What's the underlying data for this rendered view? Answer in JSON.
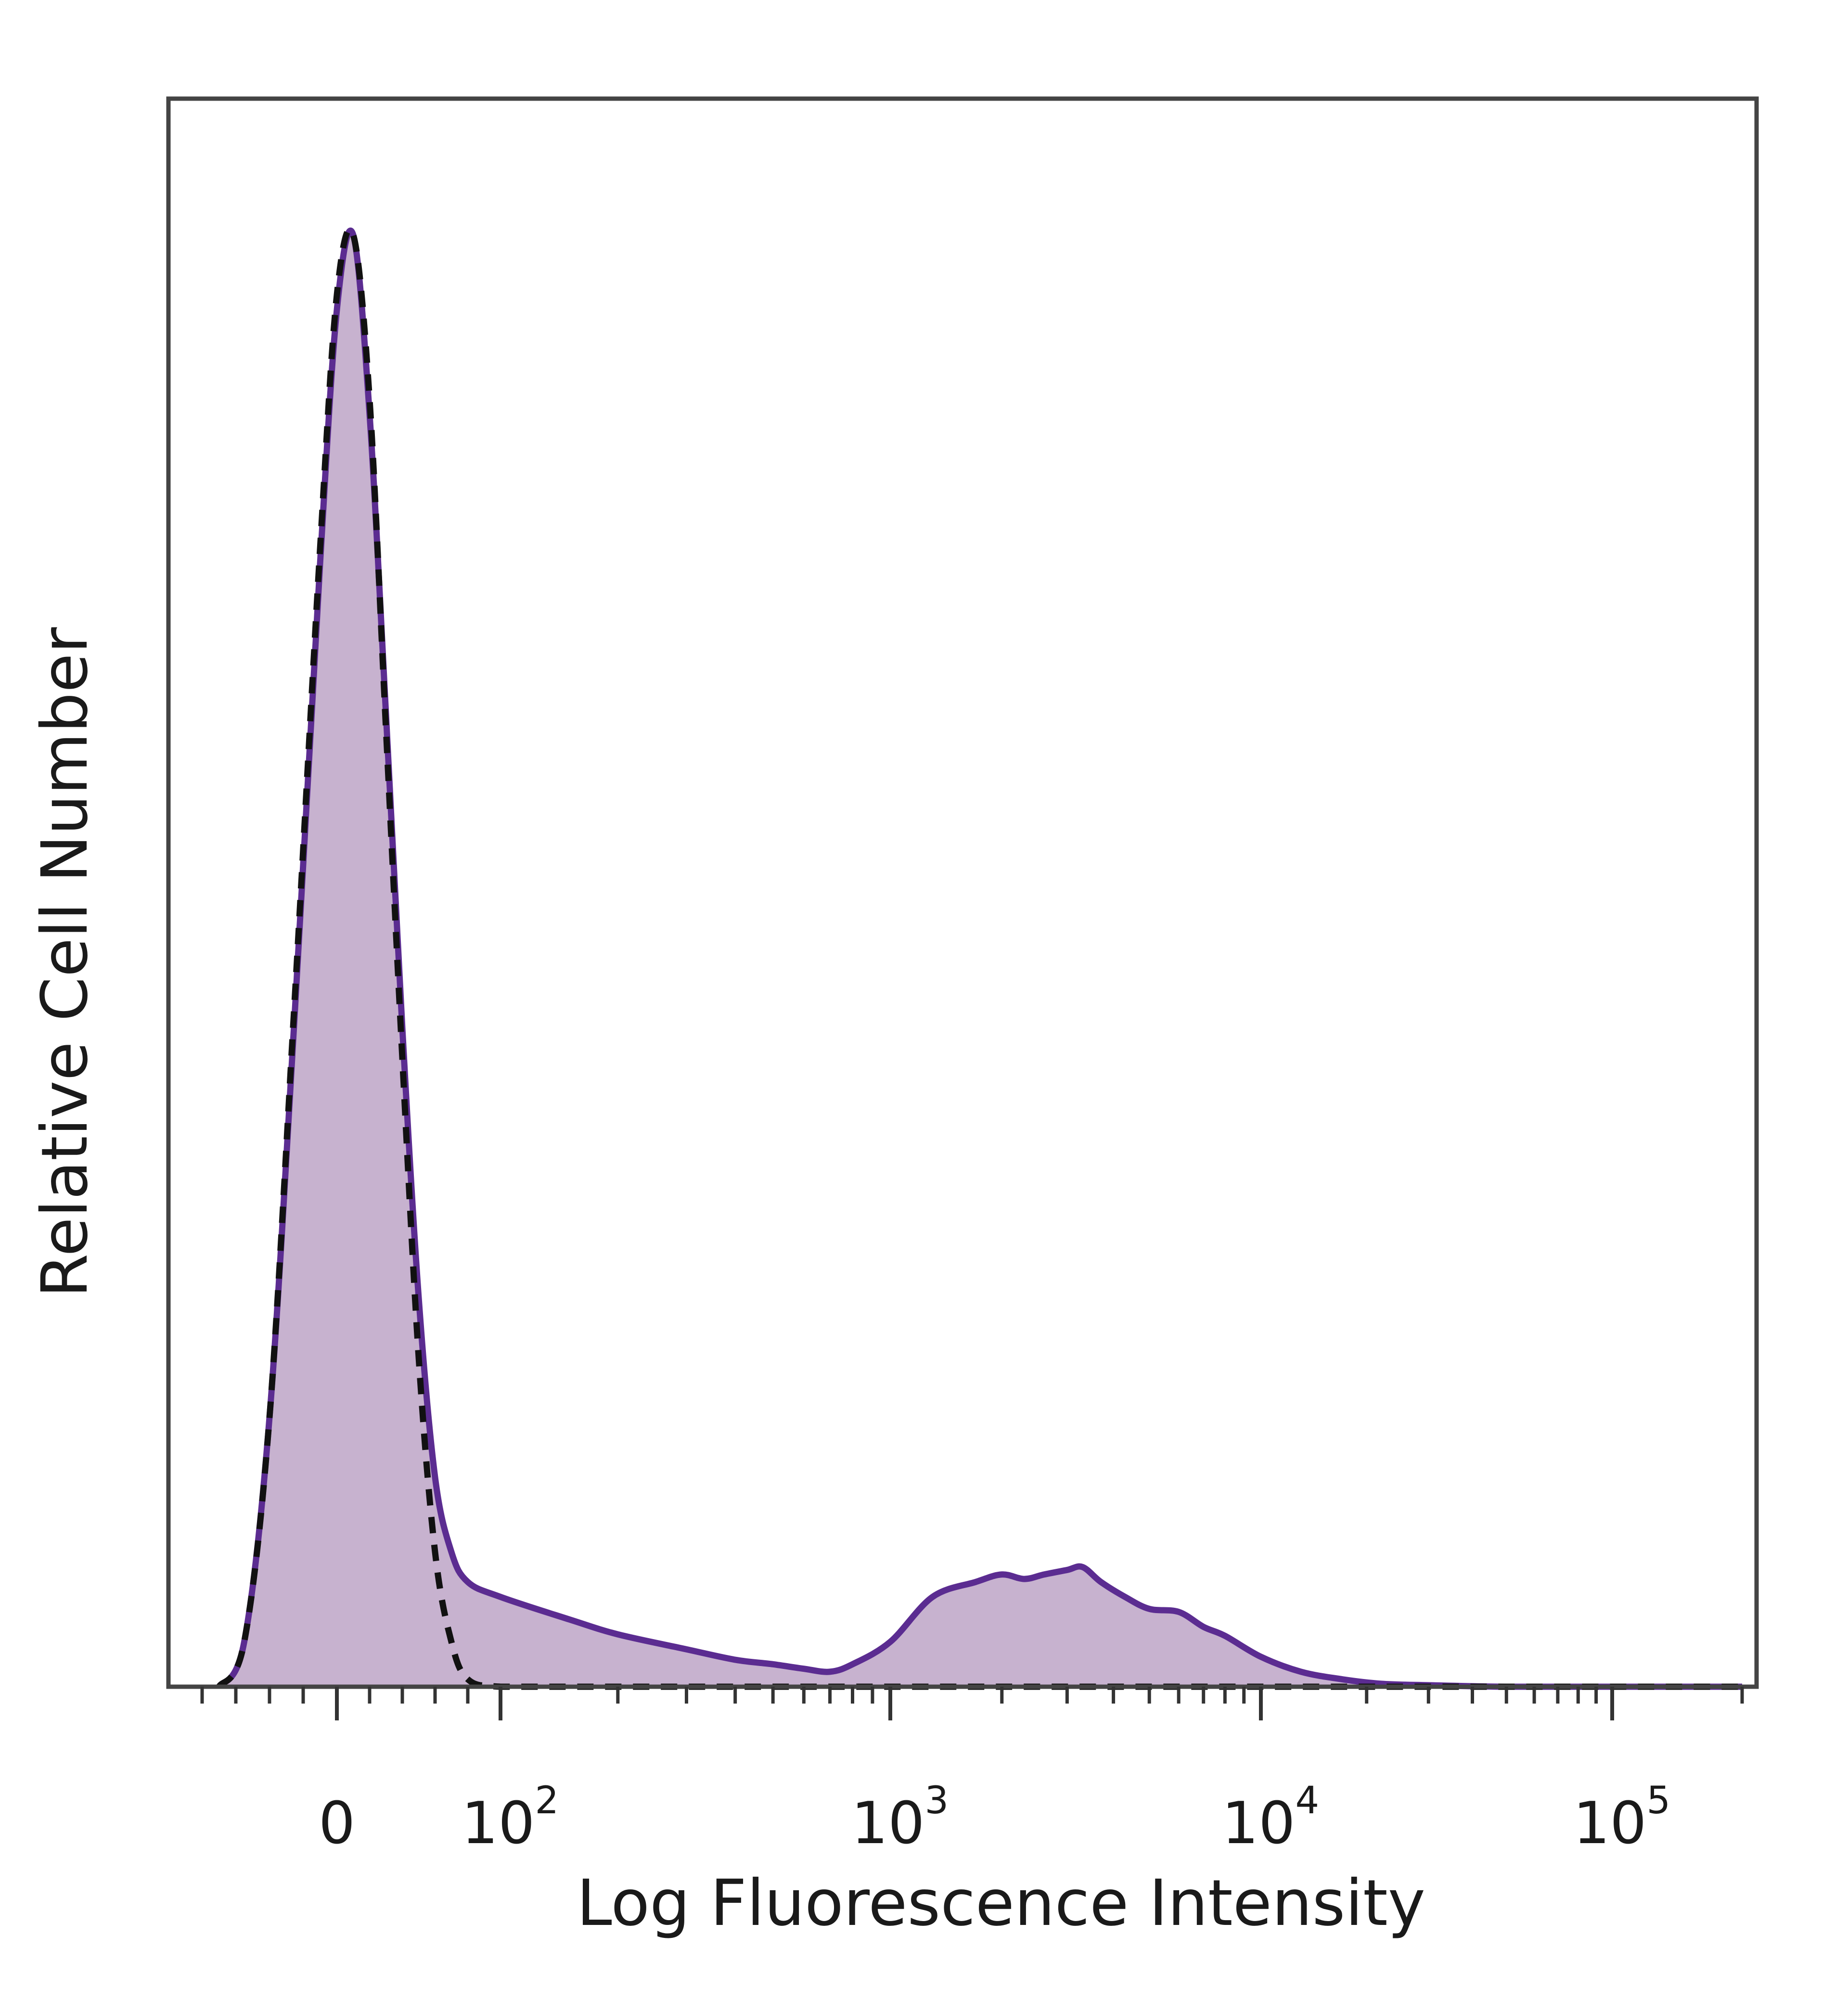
{
  "chart_data": {
    "type": "area",
    "xlabel": "Log Fluorescence Intensity",
    "ylabel": "Relative Cell Number",
    "x_scale": "biexponential",
    "xlim": [
      -80,
      200000
    ],
    "ylim": [
      0,
      100
    ],
    "x_ticks": [
      {
        "value": 0,
        "base": "0",
        "exp": ""
      },
      {
        "value": 100,
        "base": "10",
        "exp": "2"
      },
      {
        "value": 1000,
        "base": "10",
        "exp": "3"
      },
      {
        "value": 10000,
        "base": "10",
        "exp": "4"
      },
      {
        "value": 100000,
        "base": "10",
        "exp": "5"
      }
    ],
    "grid": false,
    "legend": "none",
    "colors": {
      "stained_line": "#5b2c91",
      "stained_fill": "#c7b2cf",
      "control_line": "#111111",
      "frame": "#444444"
    },
    "series": [
      {
        "style": "filled-solid",
        "x": [
          -70,
          -55,
          -40,
          -25,
          -10,
          0,
          10,
          20,
          30,
          40,
          50,
          60,
          70,
          80,
          100,
          150,
          200,
          300,
          400,
          500,
          600,
          700,
          800,
          1000,
          1300,
          1700,
          2000,
          2300,
          2600,
          3000,
          3300,
          3700,
          4300,
          5000,
          6000,
          7000,
          8000,
          10000,
          13000,
          17000,
          22000,
          30000,
          50000,
          100000,
          200000
        ],
        "y": [
          0,
          3,
          18,
          45,
          75,
          92,
          97,
          85,
          65,
          44,
          26,
          14,
          9,
          7,
          6,
          4.5,
          3.5,
          2.5,
          1.8,
          1.5,
          1.2,
          1,
          1.5,
          3,
          6,
          7,
          7.5,
          7.2,
          7.5,
          7.8,
          8,
          7,
          6,
          5.2,
          5,
          4,
          3.4,
          2,
          1,
          0.5,
          0.2,
          0.1,
          0,
          0,
          0
        ]
      },
      {
        "style": "dashed",
        "x": [
          -70,
          -55,
          -40,
          -25,
          -10,
          0,
          10,
          20,
          30,
          40,
          50,
          60,
          70,
          80,
          100,
          150,
          200,
          300,
          1000,
          10000,
          100000,
          200000
        ],
        "y": [
          0,
          3,
          18,
          46,
          76,
          93,
          97,
          86,
          64,
          42,
          22,
          9,
          3,
          0.5,
          0,
          0,
          0,
          0,
          0,
          0,
          0,
          0
        ]
      }
    ]
  }
}
